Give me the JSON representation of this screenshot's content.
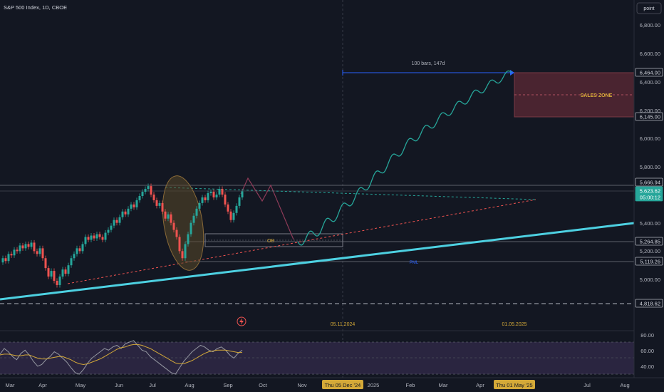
{
  "header": {
    "symbol_title": "S&P 500 Index, 1D, CBOE",
    "scale_mode_button": "point"
  },
  "colors": {
    "background": "#131722",
    "up": "#26a69a",
    "down": "#ef5350",
    "trendline": "#4dd0e1",
    "projection": "#26a69a",
    "measure": "#2962ff",
    "sales_zone": "#7a3a45",
    "sales_zone_text": "#d4a938",
    "ob_text": "#d4a938",
    "pml_text": "#2962ff",
    "rsi_line": "#7e57c2",
    "rsi_ma": "#d4a938",
    "rsi_band": "#2a2540"
  },
  "price_axis": {
    "labels": [
      "6,800.00",
      "6,600.00",
      "6,400.00",
      "6,200.00",
      "6,000.00",
      "5,800.00",
      "5,400.00",
      "5,200.00",
      "5,000.00"
    ],
    "tags": [
      {
        "text": "6,464.00",
        "kind": "level"
      },
      {
        "text": "6,145.00",
        "kind": "level"
      },
      {
        "text": "5,666.94",
        "kind": "level"
      },
      {
        "text": "5,623.62",
        "kind": "current"
      },
      {
        "text": "05:00:12",
        "kind": "countdown"
      },
      {
        "text": "5,264.85",
        "kind": "level"
      },
      {
        "text": "5,119.26",
        "kind": "level"
      },
      {
        "text": "4,818.62",
        "kind": "level"
      }
    ]
  },
  "rsi_axis": {
    "labels": [
      "80.00",
      "60.00",
      "40.00"
    ]
  },
  "time_axis": {
    "labels": [
      "Mar",
      "Apr",
      "May",
      "Jun",
      "Jul",
      "Aug",
      "Sep",
      "Oct",
      "Nov",
      "2025",
      "Feb",
      "Mar",
      "Apr",
      "Jul",
      "Aug"
    ],
    "highlighted": [
      "Thu 05 Dec '24",
      "Thu 01 May '25"
    ]
  },
  "annotations": {
    "sales_zone": "SALES ZONE",
    "ob": "OB",
    "pml": "PML",
    "measure_label": "100 bars, 147d",
    "date_left": "05.11.2024",
    "date_right": "01.05.2025",
    "flash_icon": "lightning-icon"
  },
  "chart_data": {
    "type": "candlestick",
    "price_range": [
      4780,
      6900
    ],
    "levels": [
      6464.0,
      6145.0,
      5666.94,
      5623.62,
      5264.85,
      5119.26,
      4818.62
    ],
    "candles": [
      {
        "o": 5120,
        "c": 5150
      },
      {
        "o": 5150,
        "c": 5130
      },
      {
        "o": 5130,
        "c": 5180
      },
      {
        "o": 5180,
        "c": 5170
      },
      {
        "o": 5170,
        "c": 5210
      },
      {
        "o": 5210,
        "c": 5200
      },
      {
        "o": 5200,
        "c": 5240
      },
      {
        "o": 5240,
        "c": 5220
      },
      {
        "o": 5220,
        "c": 5250
      },
      {
        "o": 5250,
        "c": 5230
      },
      {
        "o": 5230,
        "c": 5260
      },
      {
        "o": 5260,
        "c": 5200
      },
      {
        "o": 5200,
        "c": 5180
      },
      {
        "o": 5180,
        "c": 5220
      },
      {
        "o": 5220,
        "c": 5150
      },
      {
        "o": 5150,
        "c": 5080
      },
      {
        "o": 5080,
        "c": 5020
      },
      {
        "o": 5020,
        "c": 5060
      },
      {
        "o": 5060,
        "c": 4990
      },
      {
        "o": 4990,
        "c": 4960
      },
      {
        "o": 4960,
        "c": 5020
      },
      {
        "o": 5020,
        "c": 5070
      },
      {
        "o": 5070,
        "c": 5040
      },
      {
        "o": 5040,
        "c": 5100
      },
      {
        "o": 5100,
        "c": 5150
      },
      {
        "o": 5150,
        "c": 5180
      },
      {
        "o": 5180,
        "c": 5220
      },
      {
        "o": 5220,
        "c": 5200
      },
      {
        "o": 5200,
        "c": 5250
      },
      {
        "o": 5250,
        "c": 5300
      },
      {
        "o": 5300,
        "c": 5280
      },
      {
        "o": 5280,
        "c": 5310
      },
      {
        "o": 5310,
        "c": 5290
      },
      {
        "o": 5290,
        "c": 5320
      },
      {
        "o": 5320,
        "c": 5300
      },
      {
        "o": 5300,
        "c": 5280
      },
      {
        "o": 5280,
        "c": 5330
      },
      {
        "o": 5330,
        "c": 5350
      },
      {
        "o": 5350,
        "c": 5380
      },
      {
        "o": 5380,
        "c": 5420
      },
      {
        "o": 5420,
        "c": 5400
      },
      {
        "o": 5400,
        "c": 5440
      },
      {
        "o": 5440,
        "c": 5480
      },
      {
        "o": 5480,
        "c": 5460
      },
      {
        "o": 5460,
        "c": 5500
      },
      {
        "o": 5500,
        "c": 5530
      },
      {
        "o": 5530,
        "c": 5510
      },
      {
        "o": 5510,
        "c": 5560
      },
      {
        "o": 5560,
        "c": 5590
      },
      {
        "o": 5590,
        "c": 5620
      },
      {
        "o": 5620,
        "c": 5640
      },
      {
        "o": 5640,
        "c": 5660
      },
      {
        "o": 5660,
        "c": 5600
      },
      {
        "o": 5600,
        "c": 5560
      },
      {
        "o": 5560,
        "c": 5520
      },
      {
        "o": 5520,
        "c": 5540
      },
      {
        "o": 5540,
        "c": 5480
      },
      {
        "o": 5480,
        "c": 5430
      },
      {
        "o": 5430,
        "c": 5460
      },
      {
        "o": 5460,
        "c": 5400
      },
      {
        "o": 5400,
        "c": 5350
      },
      {
        "o": 5350,
        "c": 5300
      },
      {
        "o": 5300,
        "c": 5200
      },
      {
        "o": 5200,
        "c": 5150
      },
      {
        "o": 5150,
        "c": 5250
      },
      {
        "o": 5250,
        "c": 5320
      },
      {
        "o": 5320,
        "c": 5400
      },
      {
        "o": 5400,
        "c": 5450
      },
      {
        "o": 5450,
        "c": 5500
      },
      {
        "o": 5500,
        "c": 5540
      },
      {
        "o": 5540,
        "c": 5580
      },
      {
        "o": 5580,
        "c": 5560
      },
      {
        "o": 5560,
        "c": 5610
      },
      {
        "o": 5610,
        "c": 5620
      },
      {
        "o": 5620,
        "c": 5580
      },
      {
        "o": 5580,
        "c": 5600
      },
      {
        "o": 5600,
        "c": 5640
      },
      {
        "o": 5640,
        "c": 5600
      },
      {
        "o": 5600,
        "c": 5530
      },
      {
        "o": 5530,
        "c": 5480
      },
      {
        "o": 5480,
        "c": 5420
      },
      {
        "o": 5420,
        "c": 5470
      },
      {
        "o": 5470,
        "c": 5520
      },
      {
        "o": 5520,
        "c": 5580
      },
      {
        "o": 5580,
        "c": 5623
      }
    ],
    "projection_path": [
      [
        0,
        5265
      ],
      [
        6,
        5320
      ],
      [
        12,
        5420
      ],
      [
        20,
        5530
      ],
      [
        28,
        5640
      ],
      [
        36,
        5760
      ],
      [
        44,
        5880
      ],
      [
        52,
        5990
      ],
      [
        60,
        6080
      ],
      [
        68,
        6170
      ],
      [
        76,
        6250
      ],
      [
        84,
        6330
      ],
      [
        92,
        6400
      ],
      [
        100,
        6464
      ]
    ],
    "rsi": [
      55,
      62,
      58,
      52,
      48,
      56,
      60,
      54,
      46,
      40,
      42,
      48,
      52,
      58,
      55,
      50,
      45,
      38,
      32,
      30,
      36,
      44,
      50,
      54,
      58,
      62,
      60,
      64,
      66,
      62,
      68,
      70,
      72,
      66,
      60,
      58,
      52,
      48,
      44,
      40,
      36,
      32,
      30,
      38,
      46,
      52,
      58,
      62,
      66,
      64,
      60,
      58,
      62,
      64,
      60,
      54,
      50,
      56,
      60
    ],
    "rsi_ma": [
      54,
      55,
      55,
      54,
      53,
      53,
      54,
      54,
      52,
      50,
      49,
      49,
      50,
      51,
      52,
      52,
      50,
      48,
      45,
      43,
      42,
      43,
      45,
      47,
      49,
      52,
      55,
      58,
      61,
      63,
      64,
      66,
      67,
      67,
      66,
      64,
      62,
      59,
      56,
      53,
      50,
      47,
      44,
      43,
      43,
      45,
      47,
      50,
      53,
      56,
      58,
      59,
      60,
      60,
      60,
      59,
      58,
      57,
      57
    ],
    "rsi_range": [
      30,
      85
    ]
  }
}
